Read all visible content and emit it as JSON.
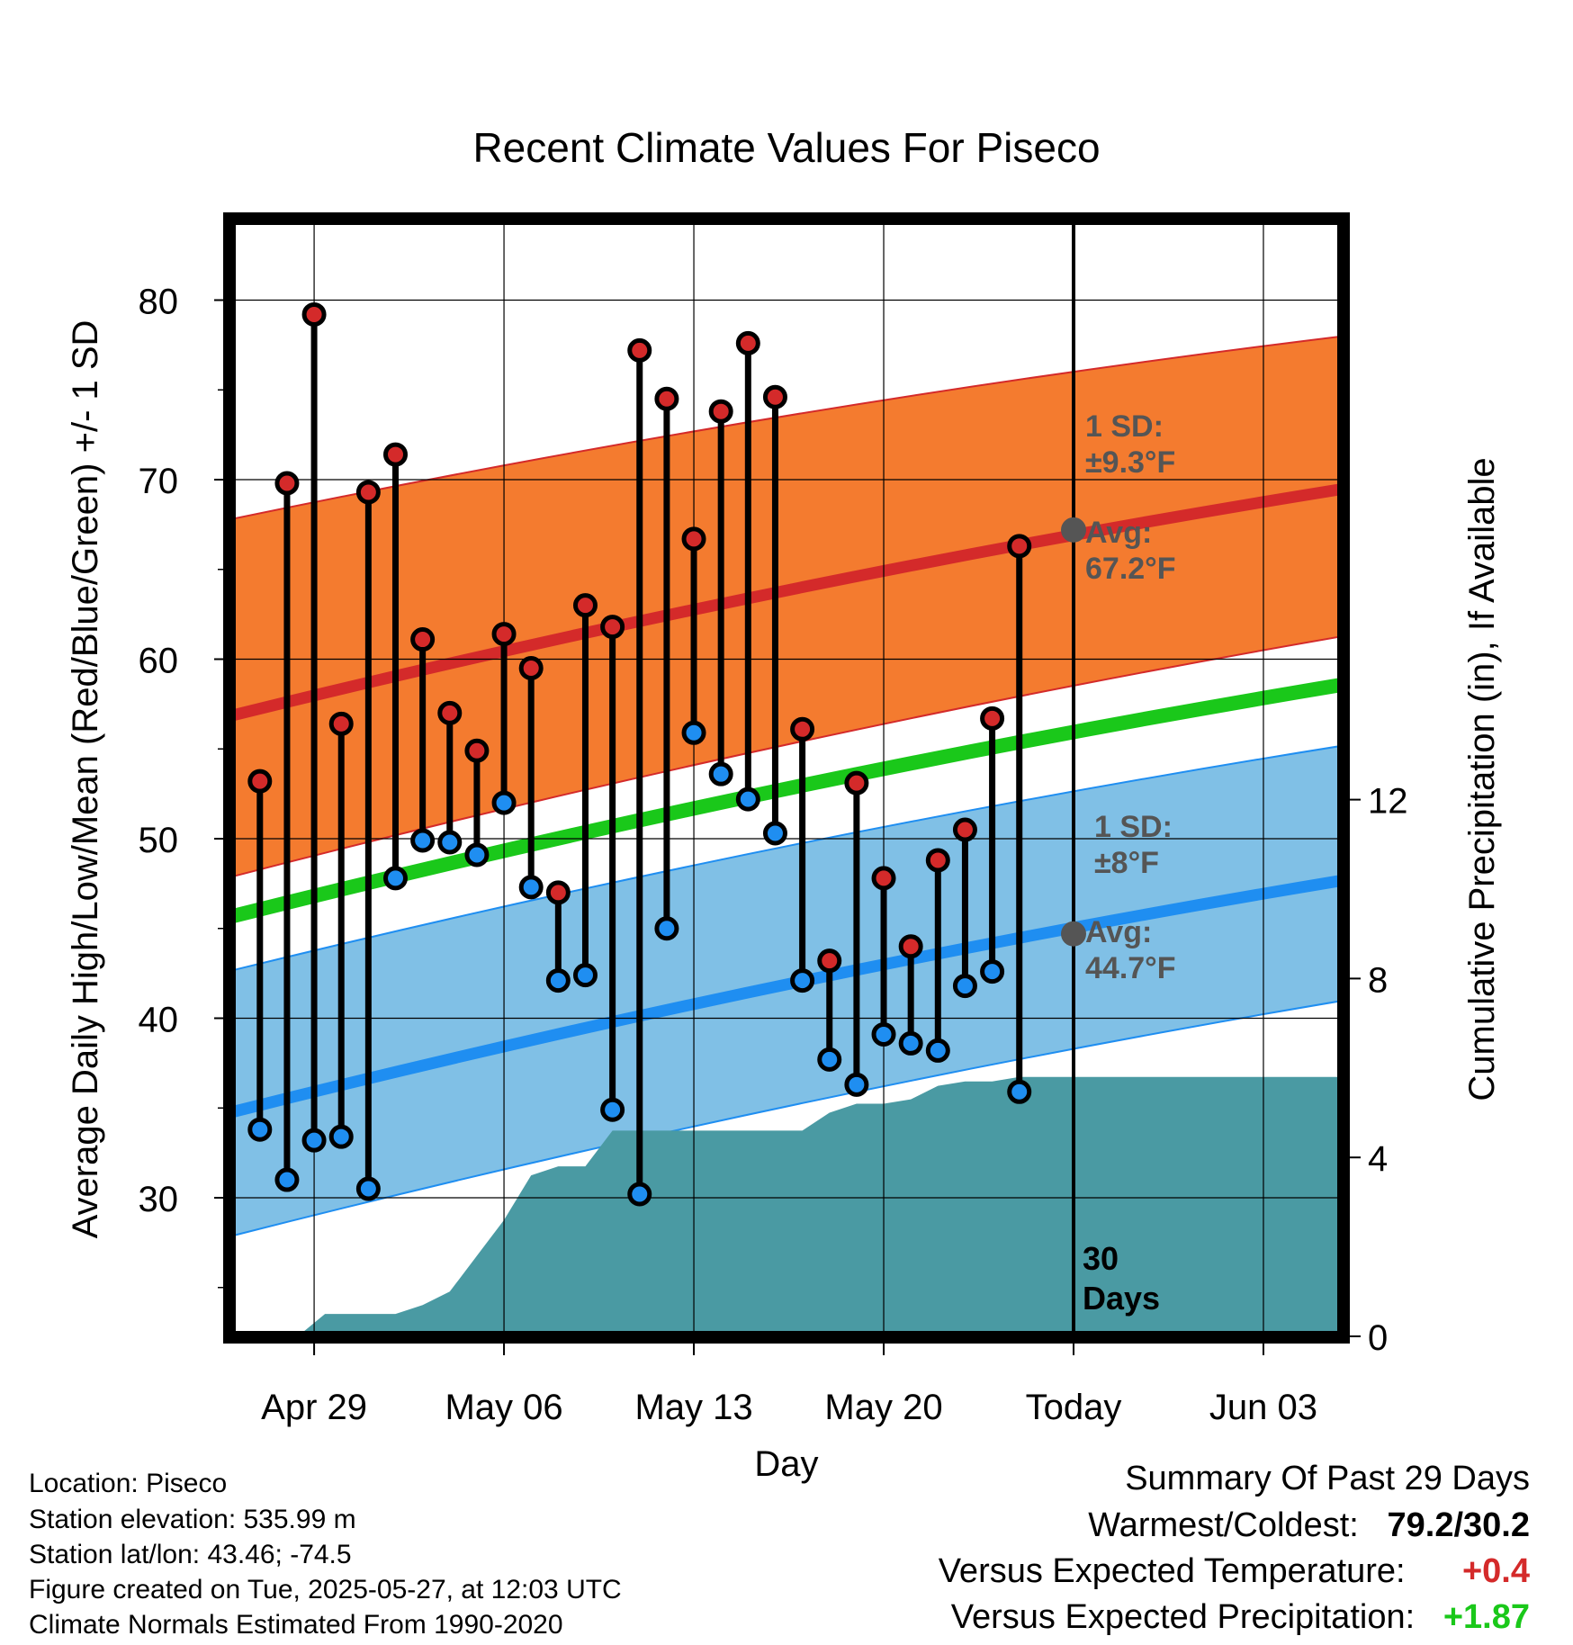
{
  "chart_data": {
    "type": "line",
    "title": "Recent Climate Values For Piseco",
    "xlabel": "Day",
    "ylabel": "Average Daily High/Low/Mean (Red/Blue/Green) +/- 1 SD",
    "y2label": "Cumulative Precipitation (in), If Available",
    "ylim": [
      22,
      84
    ],
    "y2lim": [
      0,
      20
    ],
    "x_range_days": [
      -32,
      10
    ],
    "today_index": 0,
    "today_label_lines": [
      "30",
      "Days"
    ],
    "xticks": [
      {
        "day": -28,
        "label": "Apr 29"
      },
      {
        "day": -21,
        "label": "May 06"
      },
      {
        "day": -14,
        "label": "May 13"
      },
      {
        "day": -7,
        "label": "May 20"
      },
      {
        "day": 0,
        "label": "Today"
      },
      {
        "day": 7,
        "label": "Jun 03"
      }
    ],
    "yticks": [
      30,
      40,
      50,
      60,
      70,
      80
    ],
    "y2ticks": [
      0,
      4,
      8,
      12
    ],
    "normals": {
      "x": [
        -32,
        10
      ],
      "avg_high": [
        56.5,
        69.5
      ],
      "high_sd_upper": [
        67.5,
        78
      ],
      "high_sd_lower": [
        47.5,
        61.3
      ],
      "avg_mean": [
        45.3,
        58.6
      ],
      "avg_low": [
        34.4,
        47.7
      ],
      "low_sd_upper": [
        42.3,
        55.2
      ],
      "low_sd_lower": [
        27.5,
        41
      ]
    },
    "annotations": [
      {
        "lines": [
          "1 SD:",
          "±9.3°F"
        ],
        "series": "high-sd"
      },
      {
        "lines": [
          "Avg:",
          "67.2°F"
        ],
        "series": "high-avg",
        "value": 67.2
      },
      {
        "lines": [
          "1 SD:",
          "±8°F"
        ],
        "series": "low-sd"
      },
      {
        "lines": [
          "Avg:",
          "44.7°F"
        ],
        "series": "low-avg",
        "value": 44.7
      }
    ],
    "daily_high": [
      53.2,
      69.8,
      79.2,
      56.4,
      69.3,
      71.4,
      61.1,
      57,
      54.9,
      61.4,
      59.5,
      47,
      63,
      61.8,
      77.2,
      74.5,
      66.7,
      73.8,
      77.6,
      74.6,
      56.1,
      43.2,
      53.1,
      47.8,
      44,
      48.8,
      50.5,
      56.7,
      66.3
    ],
    "daily_low": [
      33.8,
      31,
      33.2,
      33.4,
      30.5,
      47.8,
      49.9,
      49.8,
      49.1,
      52,
      47.3,
      42.1,
      42.4,
      34.9,
      30.2,
      45,
      55.9,
      53.6,
      52.2,
      50.3,
      42.1,
      37.7,
      36.3,
      39.1,
      38.6,
      38.2,
      41.8,
      42.6,
      35.9
    ],
    "daily_first_day": -30,
    "precip_x": [
      -28.6,
      -27.6,
      -26,
      -25,
      -24,
      -23,
      -22,
      -21,
      -20,
      -19,
      -18,
      -17,
      -16,
      -15,
      -14,
      -13,
      -12,
      -11,
      -10,
      -9,
      -8,
      -7,
      -6,
      -5,
      -4,
      -3,
      -2,
      -1,
      10
    ],
    "precip_cum": [
      0,
      0.5,
      0.5,
      0.5,
      0.7,
      1,
      1.8,
      2.6,
      3.6,
      3.8,
      3.8,
      4.6,
      4.6,
      4.6,
      4.6,
      4.6,
      4.6,
      4.6,
      4.6,
      5,
      5.2,
      5.2,
      5.3,
      5.6,
      5.7,
      5.7,
      5.8,
      5.8,
      5.8
    ],
    "colors": {
      "high_band": "#f47b2f",
      "high_avg": "#d42a2a",
      "low_band": "#80c0e6",
      "low_avg": "#1f8ef1",
      "mean": "#1ac81a",
      "precip": "#4a9aa3",
      "high_dot": "#d42a2a",
      "low_dot": "#1f8ef1",
      "annotation_text": "#555555",
      "today_avg_dot": "#555555"
    }
  },
  "footer": {
    "location": "Location: Piseco",
    "elevation": "Station elevation: 535.99 m",
    "latlon": "Station lat/lon: 43.46; -74.5",
    "created": "Figure created on Tue, 2025-05-27, at 12:03 UTC",
    "normals": "Climate Normals Estimated From 1990-2020"
  },
  "summary": {
    "title": "Summary Of Past 29 Days",
    "warmest_label": "Warmest/Coldest:",
    "warmest_value": "79.2/30.2",
    "temp_label": "Versus Expected Temperature:",
    "temp_value": "+0.4",
    "temp_color": "#d42a2a",
    "precip_label": "Versus Expected Precipitation:",
    "precip_value": "+1.87",
    "precip_color": "#1ac81a"
  }
}
